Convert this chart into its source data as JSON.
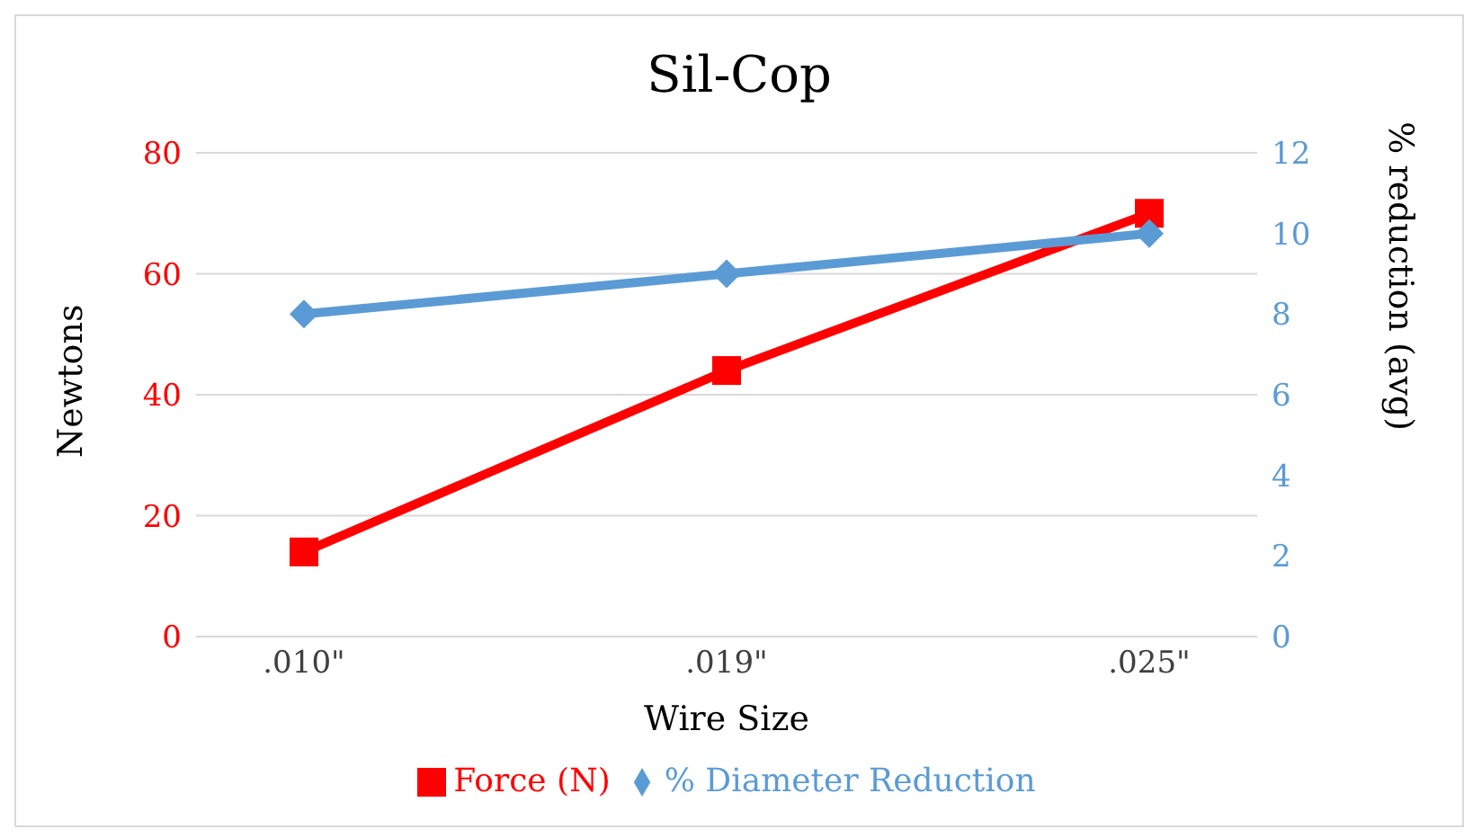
{
  "chart_data": {
    "type": "line",
    "title": "Sil-Cop",
    "xlabel": "Wire Size",
    "ylabel": "Newtons",
    "y2label": "% reduction (avg)",
    "categories": [
      ".010\"",
      ".019\"",
      ".025\""
    ],
    "series": [
      {
        "name": "Force (N)",
        "color": "#ff0000",
        "values": [
          14,
          44,
          70
        ],
        "marker": "square"
      },
      {
        "name": "% Diameter Reduction",
        "color": "#5b9bd5",
        "values": [
          8,
          9,
          10
        ],
        "marker": "diamond",
        "axis": "y2"
      }
    ],
    "ylim": [
      0,
      80
    ],
    "yticks": [
      0,
      20,
      40,
      60,
      80
    ],
    "y2lim": [
      0,
      12
    ],
    "y2ticks": [
      0,
      2,
      4,
      6,
      8,
      10,
      12
    ],
    "grid": "y",
    "legend": "bottom",
    "line_style": "solid"
  }
}
